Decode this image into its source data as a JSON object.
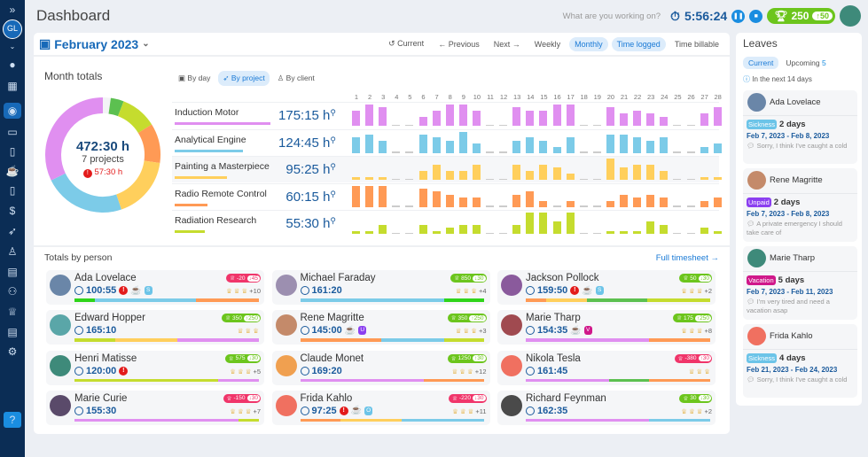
{
  "header": {
    "title": "Dashboard",
    "placeholder": "What are you working on?",
    "timer": "5:56:24",
    "score": "250",
    "score_delta": "↑50",
    "user_initials": "GL"
  },
  "toolbar": {
    "month": "February 2023",
    "current": "Current",
    "previous": "Previous",
    "next": "Next",
    "weekly": "Weekly",
    "monthly": "Monthly",
    "time_logged": "Time logged",
    "time_billable": "Time billable"
  },
  "month_totals": {
    "title": "Month totals",
    "total": "472:30 h",
    "projects": "7 projects",
    "missing": "57:30 h",
    "views": [
      "By day",
      "By project",
      "By client"
    ]
  },
  "chart_data": {
    "type": "bar",
    "categories": [
      "1",
      "2",
      "3",
      "4",
      "5",
      "6",
      "7",
      "8",
      "9",
      "10",
      "11",
      "12",
      "13",
      "14",
      "15",
      "16",
      "17",
      "18",
      "19",
      "20",
      "21",
      "22",
      "23",
      "24",
      "25",
      "26",
      "27",
      "28"
    ],
    "series": [
      {
        "name": "Induction Motor",
        "total": "175:15 h",
        "hours": 175.25,
        "color": "#e08ff0",
        "values": [
          5,
          7,
          6,
          0,
          0,
          3,
          5,
          7,
          7,
          5,
          0,
          0,
          6,
          5,
          5,
          7,
          7,
          0,
          0,
          6,
          4,
          5,
          4,
          3,
          0,
          0,
          4,
          6
        ]
      },
      {
        "name": "Analytical Engine",
        "total": "124:45 h",
        "hours": 124.75,
        "color": "#7ccbe8",
        "values": [
          5,
          6,
          4,
          0,
          0,
          6,
          5,
          4,
          7,
          3,
          0,
          0,
          4,
          5,
          4,
          2,
          5,
          0,
          0,
          6,
          6,
          5,
          4,
          5,
          0,
          0,
          2,
          3
        ]
      },
      {
        "name": "Painting a Masterpiece",
        "total": "95:25 h",
        "hours": 95.42,
        "color": "#ffcf5c",
        "values": [
          1,
          1,
          1,
          0,
          0,
          3,
          5,
          3,
          3,
          5,
          0,
          0,
          5,
          3,
          5,
          4,
          2,
          0,
          0,
          7,
          4,
          5,
          5,
          3,
          0,
          0,
          1,
          1
        ]
      },
      {
        "name": "Radio Remote Control",
        "total": "60:15 h",
        "hours": 60.25,
        "color": "#ff9a55",
        "values": [
          7,
          7,
          7,
          0,
          0,
          6,
          5,
          4,
          3,
          3,
          0,
          0,
          4,
          5,
          2,
          0,
          2,
          0,
          0,
          2,
          4,
          3,
          4,
          3,
          0,
          0,
          2,
          3
        ]
      },
      {
        "name": "Radiation Research",
        "total": "55:30 h",
        "hours": 55.5,
        "color": "#c5dc2e",
        "values": [
          1,
          1,
          3,
          0,
          0,
          3,
          1,
          2,
          3,
          3,
          0,
          0,
          3,
          7,
          7,
          4,
          7,
          0,
          0,
          1,
          1,
          1,
          4,
          3,
          0,
          0,
          2,
          1
        ]
      }
    ]
  },
  "persons": {
    "title": "Totals by person",
    "full_link": "Full timesheet →",
    "items": [
      {
        "name": "Ada Lovelace",
        "time": "100:55",
        "alert": true,
        "brk": "S",
        "brk_color": "#6cc4e8",
        "score": "-20",
        "delta": "↓45",
        "bad": true,
        "more": "+10",
        "av": "#6a86a8",
        "bar": [
          [
            "#2fd41a",
            11
          ],
          [
            "#7ccbe8",
            55
          ],
          [
            "#ff9a55",
            34
          ]
        ]
      },
      {
        "name": "Michael Faraday",
        "time": "161:20",
        "score": "850",
        "delta": "↓30",
        "more": "+4",
        "av": "#9c8fb0",
        "bar": [
          [
            "#7ccbe8",
            78
          ],
          [
            "#2fd41a",
            22
          ]
        ]
      },
      {
        "name": "Jackson Pollock",
        "time": "159:50",
        "alert": true,
        "brk": "S",
        "brk_color": "#6cc4e8",
        "score": "50",
        "delta": "↓30",
        "more": "+2",
        "av": "#8a5a9c",
        "bar": [
          [
            "#ff9a55",
            11
          ],
          [
            "#ffcf5c",
            22
          ],
          [
            "#5cc050",
            33
          ],
          [
            "#c5dc2e",
            34
          ]
        ]
      },
      {
        "name": "Edward Hopper",
        "time": "165:10",
        "score": "350",
        "delta": "↑250",
        "more": "",
        "av": "#5aa6a8",
        "bar": [
          [
            "#c5dc2e",
            22
          ],
          [
            "#ffcf5c",
            34
          ],
          [
            "#e08ff0",
            44
          ]
        ]
      },
      {
        "name": "Rene Magritte",
        "time": "145:00",
        "brk": "U",
        "brk_color": "#8b3ff0",
        "score": "350",
        "delta": "↑250",
        "more": "+3",
        "av": "#c48a6a",
        "bar": [
          [
            "#ff9a55",
            44
          ],
          [
            "#7ccbe8",
            34
          ],
          [
            "#c5dc2e",
            22
          ]
        ]
      },
      {
        "name": "Marie Tharp",
        "time": "154:35",
        "brk": "V",
        "brk_color": "#d0188a",
        "score": "175",
        "delta": "↑250",
        "more": "+8",
        "av": "#a04a50",
        "bar": [
          [
            "#e08ff0",
            67
          ],
          [
            "#ff9a55",
            33
          ]
        ]
      },
      {
        "name": "Henri Matisse",
        "time": "120:00",
        "alert": true,
        "score": "575",
        "delta": "↓30",
        "more": "+5",
        "av": "#3e8a7a",
        "bar": [
          [
            "#c5dc2e",
            78
          ],
          [
            "#e08ff0",
            22
          ]
        ]
      },
      {
        "name": "Claude Monet",
        "time": "169:20",
        "score": "1250",
        "delta": "↑30",
        "more": "+12",
        "av": "#f0a050",
        "bar": [
          [
            "#e08ff0",
            67
          ],
          [
            "#ff9a55",
            33
          ]
        ]
      },
      {
        "name": "Nikola Tesla",
        "time": "161:45",
        "score": "-380",
        "delta": "↑30",
        "bad": true,
        "more": "",
        "av": "#f07060",
        "bar": [
          [
            "#e08ff0",
            45
          ],
          [
            "#5cc050",
            22
          ],
          [
            "#ff9a55",
            33
          ]
        ]
      },
      {
        "name": "Marie Curie",
        "time": "155:30",
        "score": "-150",
        "delta": "↓30",
        "bad": true,
        "more": "+7",
        "av": "#5a4a6a",
        "bar": [
          [
            "#e08ff0",
            89
          ],
          [
            "#c5dc2e",
            11
          ]
        ]
      },
      {
        "name": "Frida Kahlo",
        "time": "97:25",
        "alert": true,
        "brk": "O",
        "brk_color": "#6cc4e8",
        "score": "-220",
        "delta": "↓30",
        "bad": true,
        "more": "+11",
        "av": "#f07060",
        "bar": [
          [
            "#ff9a55",
            22
          ],
          [
            "#ffcf5c",
            33
          ],
          [
            "#7ccbe8",
            45
          ]
        ]
      },
      {
        "name": "Richard Feynman",
        "time": "162:35",
        "score": "30",
        "delta": "↓30",
        "more": "+2",
        "av": "#4a4a4a",
        "bar": [
          [
            "#e08ff0",
            67
          ],
          [
            "#7ccbe8",
            33
          ]
        ]
      }
    ]
  },
  "leaves": {
    "title": "Leaves",
    "tab_current": "Current",
    "tab_upcoming": "Upcoming",
    "upcoming_count": "5",
    "info": "In the next 14 days",
    "items": [
      {
        "name": "Ada Lovelace",
        "type": "Sickness",
        "color": "#6cc4e8",
        "days": "2 days",
        "dates": "Feb 7, 2023 - Feb 8, 2023",
        "comment": "Sorry, I think I've caught a cold",
        "av": "#6a86a8"
      },
      {
        "name": "Rene Magritte",
        "type": "Unpaid",
        "color": "#8b3ff0",
        "days": "2 days",
        "dates": "Feb 7, 2023 - Feb 8, 2023",
        "comment": "A private emergency I should take care of",
        "av": "#c48a6a"
      },
      {
        "name": "Marie Tharp",
        "type": "Vacation",
        "color": "#d0188a",
        "days": "5 days",
        "dates": "Feb 7, 2023 - Feb 11, 2023",
        "comment": "I'm very tired and need a vacation asap",
        "av": "#3e8a7a"
      },
      {
        "name": "Frida Kahlo",
        "type": "Sickness",
        "color": "#6cc4e8",
        "days": "4 days",
        "dates": "Feb 21, 2023 - Feb 24, 2023",
        "comment": "Sorry, I think I've caught a cold",
        "av": "#f07060"
      }
    ]
  }
}
